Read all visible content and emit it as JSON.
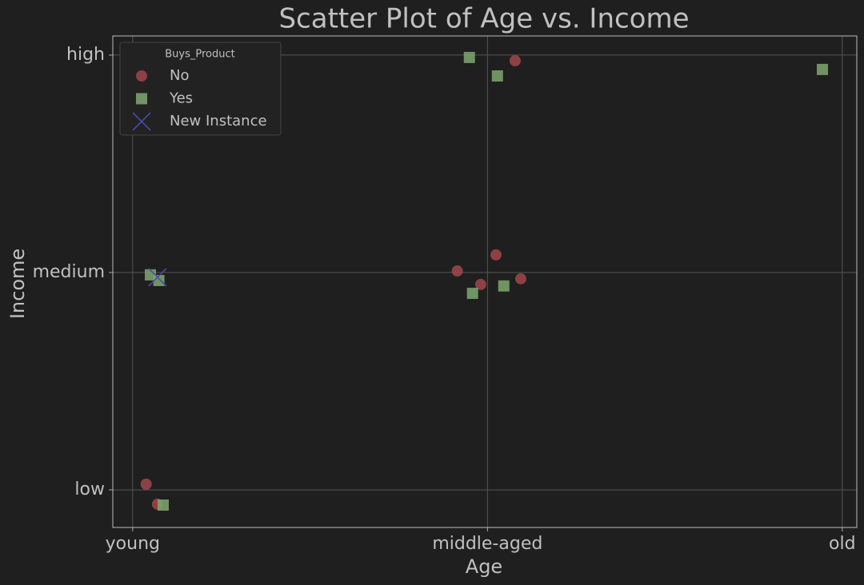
{
  "chart_data": {
    "type": "scatter",
    "title": "Scatter Plot of Age vs. Income",
    "x_label": "Age",
    "y_label": "Income",
    "xlim": [
      -0.056,
      2.041
    ],
    "ylim": [
      -0.173,
      2.088
    ],
    "xticks": [
      {
        "value": 0,
        "label": "young"
      },
      {
        "value": 1,
        "label": "middle-aged"
      },
      {
        "value": 2,
        "label": "old"
      }
    ],
    "yticks": [
      {
        "value": 0,
        "label": "low"
      },
      {
        "value": 1,
        "label": "medium"
      },
      {
        "value": 2,
        "label": "high"
      }
    ],
    "grid": true,
    "legend_title": "Buys_Product",
    "legend_position": "upper-left",
    "series": [
      {
        "name": "No",
        "color": "#a94a4e",
        "marker": "circle",
        "x": [
          0.038,
          0.07,
          0.915,
          0.981,
          1.024,
          1.094,
          1.078
        ],
        "values": [
          0.026,
          -0.066,
          1.007,
          0.945,
          1.081,
          0.971,
          1.974
        ]
      },
      {
        "name": "Yes",
        "color": "#7fa870",
        "marker": "square",
        "x": [
          0.086,
          0.05,
          0.074,
          0.949,
          1.028,
          0.958,
          1.046,
          1.944
        ],
        "values": [
          -0.07,
          0.989,
          0.963,
          1.989,
          1.904,
          0.904,
          0.938,
          1.934
        ]
      },
      {
        "name": "New Instance",
        "color": "#4a4aa8",
        "marker": "x",
        "x": [
          0.07
        ],
        "values": [
          0.978
        ]
      }
    ]
  }
}
